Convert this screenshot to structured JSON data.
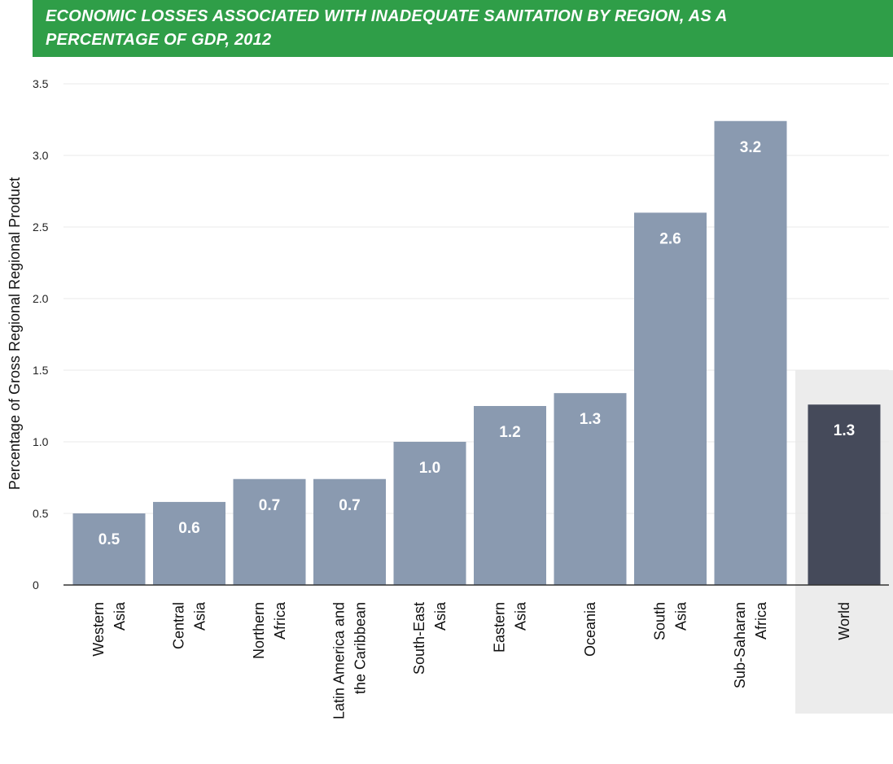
{
  "chart_data": {
    "type": "bar",
    "title": "ECONOMIC LOSSES ASSOCIATED WITH INADEQUATE SANITATION BY REGION, AS A\nPERCENTAGE OF GDP, 2012",
    "ylabel": "Percentage of Gross Regional Regional Product",
    "xlabel": "",
    "ylim": [
      0,
      3.5
    ],
    "yticks": [
      "0",
      "0.5",
      "1.0",
      "1.5",
      "2.0",
      "2.5",
      "3.0",
      "3.5"
    ],
    "grid": true,
    "categories": [
      "Western\nAsia",
      "Central\nAsia",
      "Northern\nAfrica",
      "Latin America and\nthe Caribbean",
      "South-East\nAsia",
      "Eastern\nAsia",
      "Oceania",
      "South\nAsia",
      "Sub-Saharan\nAfrica",
      "World"
    ],
    "values": [
      0.5,
      0.58,
      0.74,
      0.74,
      1.0,
      1.25,
      1.34,
      2.6,
      3.24,
      1.26
    ],
    "labels": [
      "0.5",
      "0.6",
      "0.7",
      "0.7",
      "1.0",
      "1.2",
      "1.3",
      "2.6",
      "3.2",
      "1.3"
    ],
    "colors": {
      "title_bg": "#2f9e48",
      "bar": "#8a9ab0",
      "world_bar": "#454a5a",
      "world_bg": "#ececec",
      "grid": "#e8e8e8"
    }
  }
}
